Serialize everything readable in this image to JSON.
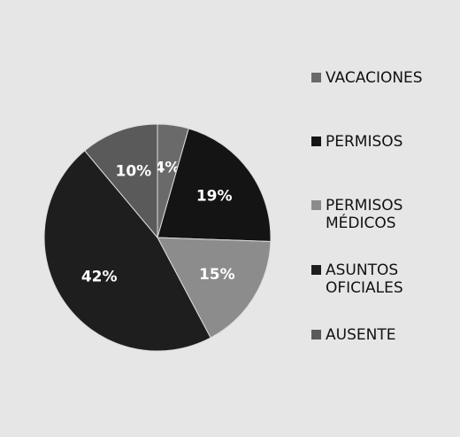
{
  "chart_data": {
    "type": "pie",
    "categories": [
      "VACACIONES",
      "PERMISOS",
      "PERMISOS MÉDICOS",
      "ASUNTOS OFICIALES",
      "AUSENTE"
    ],
    "values": [
      4,
      19,
      15,
      42,
      10
    ],
    "value_labels": [
      "4%",
      "19%",
      "15%",
      "42%",
      "10%"
    ],
    "colors": [
      "#6a6a6a",
      "#141414",
      "#8c8c8c",
      "#1e1e1e",
      "#5a5a5a"
    ]
  }
}
